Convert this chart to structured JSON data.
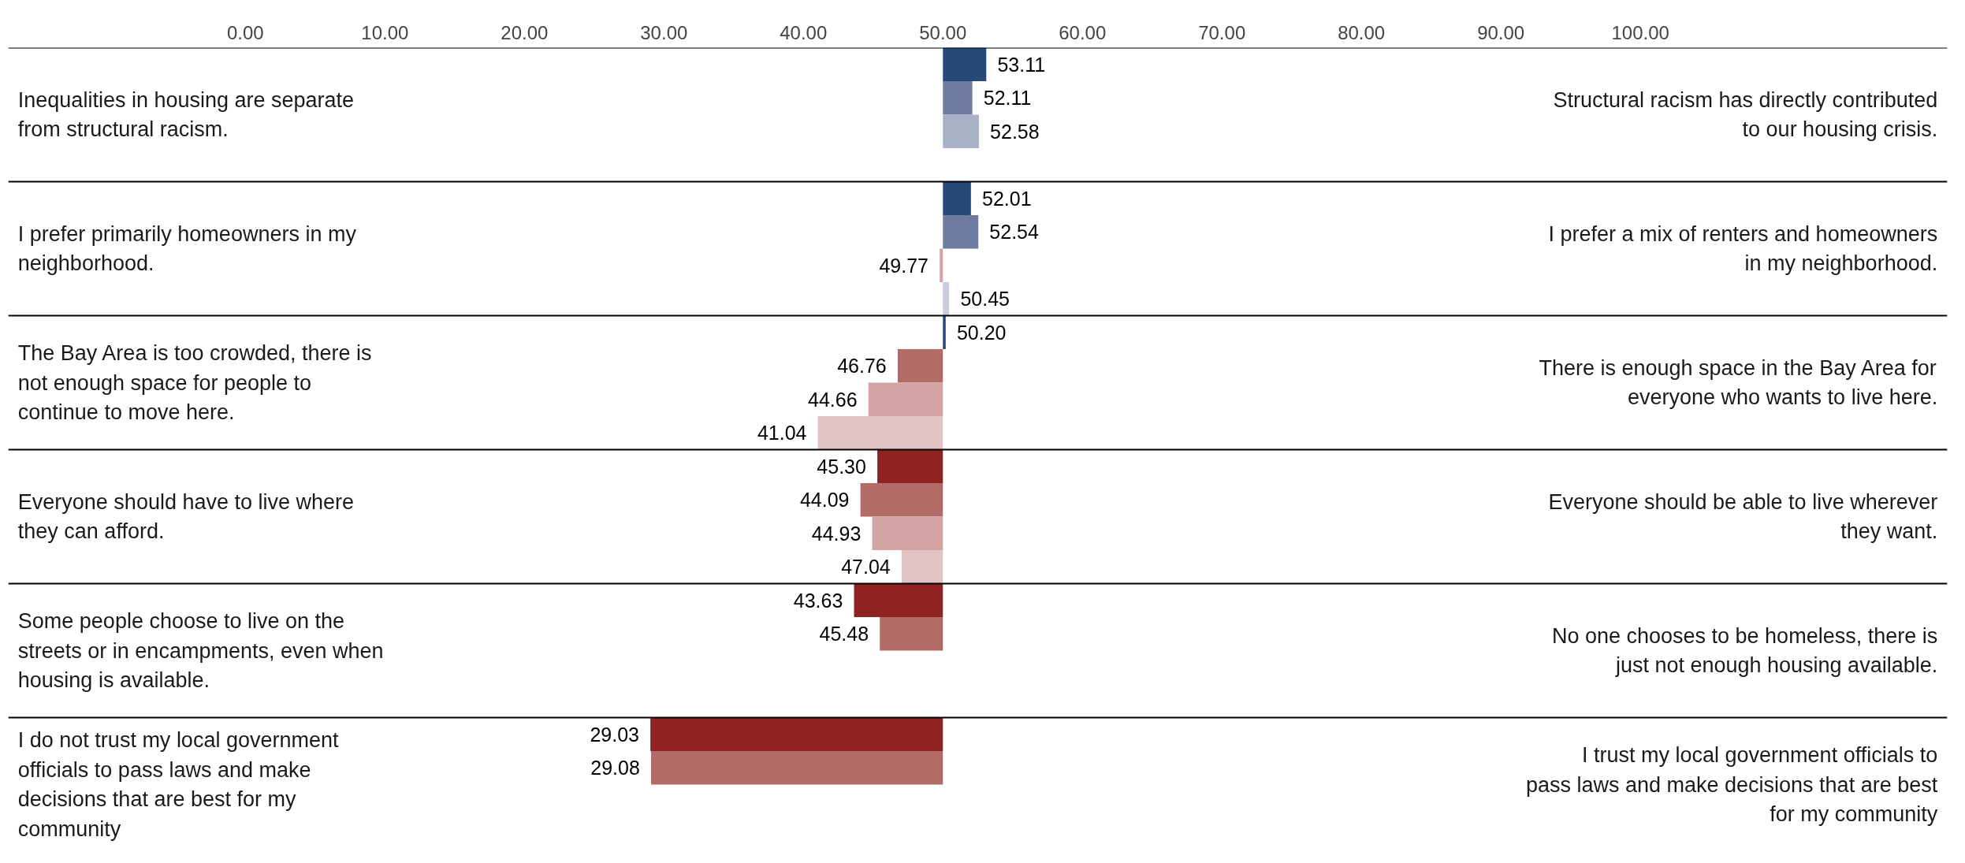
{
  "chart_data": {
    "type": "bar",
    "orientation": "horizontal",
    "categories": [
      "Inequalities in housing are separate from structural racism.",
      "I prefer primarily homeowners in my neighborhood.",
      "The Bay Area is too crowded, there is not enough space for people to continue to move here.",
      "Everyone should have to live where they can afford.",
      "Some people choose to live on the streets or in encampments, even when housing is available.",
      "I do not trust my local government officials to pass laws and make decisions that are best for my community"
    ],
    "annotations": [
      "Structural racism has directly contributed to our housing crisis.",
      "I prefer a mix of renters and homeowners in my neighborhood.",
      "There is enough space in the Bay Area for everyone who wants to live here.",
      "Everyone should be able to live wherever they want.",
      "No one chooses to be homeless, there is just not enough housing available.",
      "I trust my local government officials to pass laws and make decisions that are best for my community"
    ],
    "series": [
      {
        "base": [
          50,
          50,
          50,
          50,
          50,
          50
        ],
        "values": [
          3.11,
          2.01,
          0.2,
          -4.7,
          -6.37,
          -20.97
        ],
        "value_labels": [
          "53.11",
          "52.01",
          "50.20",
          "45.30",
          "43.63",
          "29.03"
        ],
        "colors": [
          "#264a78",
          "#264a78",
          "#264a78",
          "#8e2321",
          "#8e2321",
          "#8e2321"
        ]
      },
      {
        "base": [
          50,
          50,
          50,
          50,
          50,
          50
        ],
        "values": [
          2.11,
          2.54,
          -3.24,
          -5.91,
          -4.52,
          -20.92
        ],
        "value_labels": [
          "52.11",
          "52.54",
          "46.76",
          "44.09",
          "45.48",
          "29.08"
        ],
        "colors": [
          "#6d7ba0",
          "#6d7ba0",
          "#b36b67",
          "#b36b67",
          "#b36b67",
          "#b36b67"
        ]
      },
      {
        "base": [
          50,
          50,
          50,
          50,
          null,
          null
        ],
        "values": [
          2.58,
          -0.23,
          -5.34,
          -5.07,
          null,
          null
        ],
        "value_labels": [
          "52.58",
          "49.77",
          "44.66",
          "44.93",
          null,
          null
        ],
        "colors": [
          "#a9b2c9",
          "#d4a4a4",
          "#d4a4a4",
          "#d4a4a4",
          null,
          null
        ]
      },
      {
        "base": [
          null,
          50,
          50,
          50,
          null,
          null
        ],
        "values": [
          null,
          0.45,
          -8.96,
          -2.96,
          null,
          null
        ],
        "value_labels": [
          null,
          "50.45",
          "41.04",
          "47.04",
          null,
          null
        ],
        "colors": [
          null,
          "#c8cedc",
          "#e3c4c4",
          "#e3c4c4",
          null,
          null
        ]
      }
    ],
    "xlim": [
      -17,
      122
    ],
    "xticks": [
      {
        "value": 0,
        "label": "0.00"
      },
      {
        "value": 10,
        "label": "10.00"
      },
      {
        "value": 20,
        "label": "20.00"
      },
      {
        "value": 30,
        "label": "30.00"
      },
      {
        "value": 40,
        "label": "40.00"
      },
      {
        "value": 50,
        "label": "50.00"
      },
      {
        "value": 60,
        "label": "60.00"
      },
      {
        "value": 70,
        "label": "70.00"
      },
      {
        "value": 80,
        "label": "80.00"
      },
      {
        "value": 90,
        "label": "90.00"
      },
      {
        "value": 100,
        "label": "100.00"
      }
    ],
    "grid": false
  }
}
